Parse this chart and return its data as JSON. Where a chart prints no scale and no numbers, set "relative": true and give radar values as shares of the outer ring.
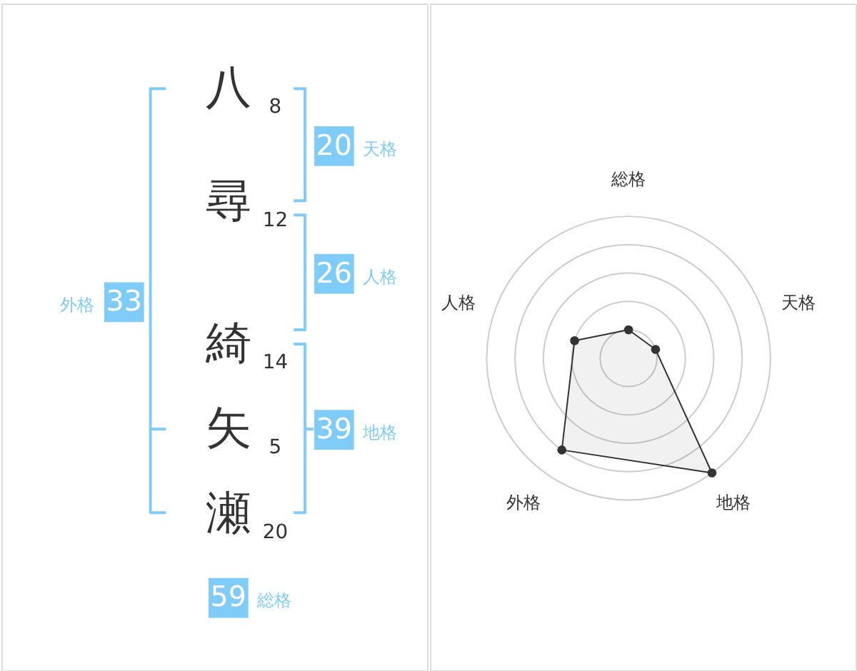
{
  "chart_data": [
    {
      "type": "other",
      "categories": [
        "八",
        "尋",
        "綺",
        "矢",
        "瀬"
      ],
      "values": [
        8,
        12,
        14,
        5,
        20
      ],
      "data_labels": true
    },
    {
      "type": "other",
      "categories": [
        "天格",
        "人格",
        "地格",
        "外格",
        "総格"
      ],
      "values": [
        20,
        26,
        39,
        33,
        59
      ],
      "data_labels": true,
      "colors": [
        "#80ccf8",
        "#80ccf8",
        "#80ccf8",
        "#80ccf8",
        "#80ccf8"
      ]
    },
    {
      "type": "radar",
      "categories": [
        "総格",
        "天格",
        "地格",
        "外格",
        "人格"
      ],
      "relative": true,
      "series": [
        {
          "color": "#333333",
          "values": [
            0.2,
            0.2,
            1.0,
            0.8,
            0.4
          ]
        }
      ],
      "marker": "circle",
      "grid": true
    }
  ]
}
